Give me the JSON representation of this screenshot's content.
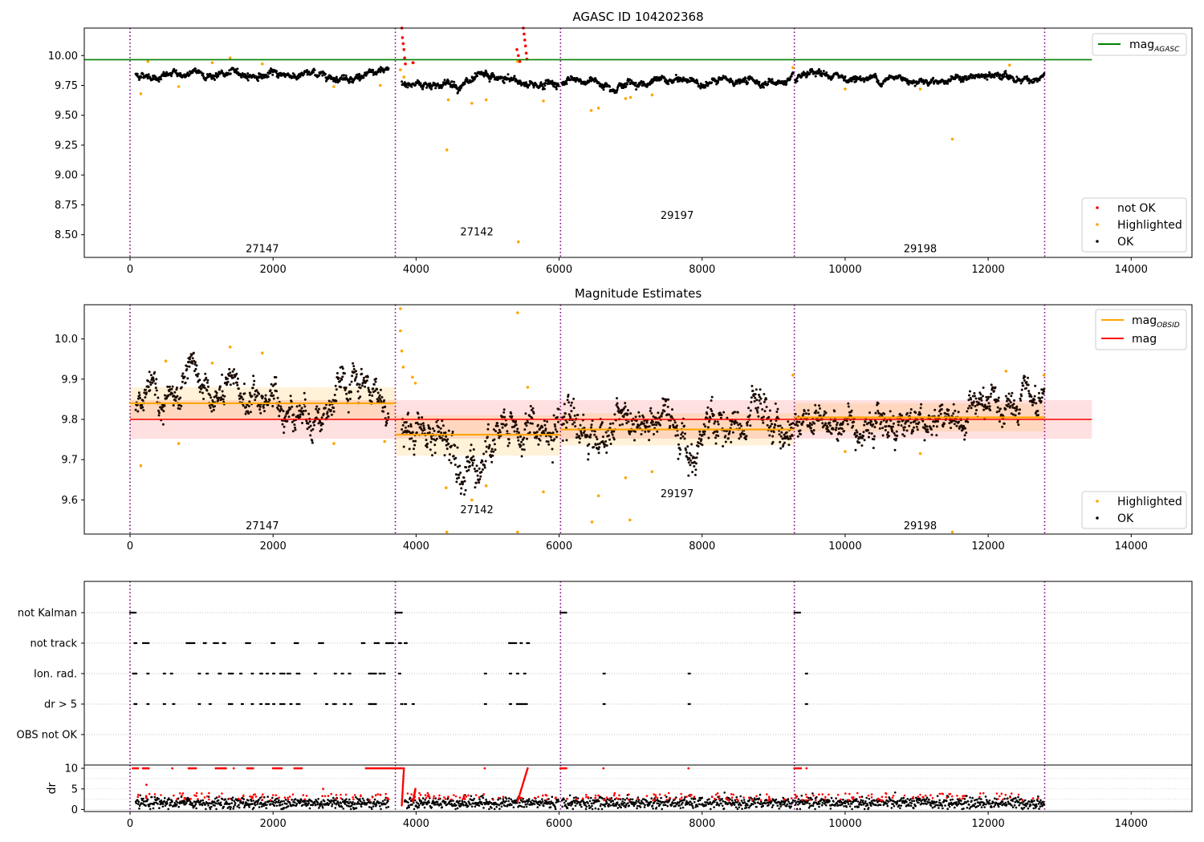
{
  "colors": {
    "ok": "#000000",
    "not_ok": "#ff0000",
    "highlighted": "#ffa500",
    "mag_agasc_line": "#008000",
    "mag_line": "#ff0000",
    "mag_obsid_line": "#ffa500",
    "obs_boundary": "#800080"
  },
  "chart_data": [
    {
      "type": "scatter",
      "title": "AGASC ID 104202368",
      "xlim": [
        -640,
        14850
      ],
      "ylim": [
        8.31,
        10.23
      ],
      "xticks": [
        0,
        2000,
        4000,
        6000,
        8000,
        10000,
        12000,
        14000
      ],
      "yticks": [
        8.5,
        8.75,
        9.0,
        9.25,
        9.5,
        9.75,
        10.0
      ],
      "xtick_labels": [
        "0",
        "2000",
        "4000",
        "6000",
        "8000",
        "10000",
        "12000",
        "14000"
      ],
      "ytick_labels": [
        "8.50",
        "8.75",
        "9.00",
        "9.25",
        "9.50",
        "9.75",
        "10.00"
      ],
      "grid": false,
      "hlines": [
        {
          "name": "mag_AGASC",
          "y": 9.965,
          "x": [
            -640,
            13450
          ]
        }
      ],
      "obs_boundaries": [
        0,
        3710,
        6020,
        9290,
        12790
      ],
      "obsid_labels": [
        {
          "text": "27147",
          "x": 1850,
          "y": 8.38
        },
        {
          "text": "27142",
          "x": 4850,
          "y": 8.52
        },
        {
          "text": "29197",
          "x": 7650,
          "y": 8.66
        },
        {
          "text": "29198",
          "x": 11050,
          "y": 8.38
        }
      ],
      "segments": [
        {
          "x": [
            80,
            3620
          ],
          "base": 9.84,
          "noise": 0.025
        },
        {
          "x": [
            3800,
            6000
          ],
          "base": 9.77,
          "noise": 0.03
        },
        {
          "x": [
            6040,
            9280
          ],
          "base": 9.78,
          "noise": 0.025
        },
        {
          "x": [
            9300,
            12790
          ],
          "base": 9.81,
          "noise": 0.025
        }
      ],
      "highlighted_points": [
        [
          150,
          9.68
        ],
        [
          250,
          9.95
        ],
        [
          680,
          9.74
        ],
        [
          1150,
          9.94
        ],
        [
          1400,
          9.98
        ],
        [
          1850,
          9.93
        ],
        [
          2850,
          9.74
        ],
        [
          3500,
          9.75
        ],
        [
          3780,
          9.88
        ],
        [
          3830,
          9.82
        ],
        [
          3950,
          9.94
        ],
        [
          4430,
          9.21
        ],
        [
          4450,
          9.63
        ],
        [
          4780,
          9.6
        ],
        [
          4980,
          9.63
        ],
        [
          5430,
          8.44
        ],
        [
          5420,
          9.95
        ],
        [
          5780,
          9.62
        ],
        [
          6450,
          9.54
        ],
        [
          6550,
          9.56
        ],
        [
          6930,
          9.64
        ],
        [
          7000,
          9.65
        ],
        [
          7300,
          9.67
        ],
        [
          9270,
          9.9
        ],
        [
          10000,
          9.72
        ],
        [
          11050,
          9.72
        ],
        [
          11500,
          9.3
        ],
        [
          12300,
          9.92
        ]
      ],
      "not_ok_points": [
        [
          3800,
          10.23
        ],
        [
          3810,
          10.15
        ],
        [
          3820,
          10.1
        ],
        [
          3830,
          10.05
        ],
        [
          3840,
          9.98
        ],
        [
          3850,
          9.93
        ],
        [
          3960,
          9.94
        ],
        [
          5410,
          10.05
        ],
        [
          5430,
          10.0
        ],
        [
          5450,
          9.95
        ],
        [
          5500,
          10.23
        ],
        [
          5510,
          10.18
        ],
        [
          5520,
          10.13
        ],
        [
          5530,
          10.08
        ],
        [
          5540,
          10.02
        ],
        [
          5550,
          9.97
        ]
      ],
      "legend_upper": {
        "position": "upper-right",
        "entries": [
          {
            "label": "mag",
            "sub": "AGASC",
            "series": "mag_agasc_line"
          }
        ]
      },
      "legend_lower": {
        "position": "lower-right",
        "entries": [
          {
            "label": "not OK",
            "series": "not_ok"
          },
          {
            "label": "Highlighted",
            "series": "highlighted"
          },
          {
            "label": "OK",
            "series": "ok"
          }
        ]
      }
    },
    {
      "type": "scatter",
      "title": "Magnitude Estimates",
      "xlim": [
        -640,
        14850
      ],
      "ylim": [
        9.515,
        10.085
      ],
      "xticks": [
        0,
        2000,
        4000,
        6000,
        8000,
        10000,
        12000,
        14000
      ],
      "yticks": [
        9.6,
        9.7,
        9.8,
        9.9,
        10.0
      ],
      "xtick_labels": [
        "0",
        "2000",
        "4000",
        "6000",
        "8000",
        "10000",
        "12000",
        "14000"
      ],
      "ytick_labels": [
        "9.6",
        "9.7",
        "9.8",
        "9.9",
        "10.0"
      ],
      "grid": false,
      "mag": {
        "y": 9.8,
        "band": [
          9.752,
          9.848
        ],
        "x": [
          0,
          13450
        ]
      },
      "mag_obsid": [
        {
          "x": [
            0,
            3710
          ],
          "y": 9.84,
          "band": [
            9.8,
            9.88
          ]
        },
        {
          "x": [
            3710,
            6020
          ],
          "y": 9.762,
          "band": [
            9.71,
            9.81
          ]
        },
        {
          "x": [
            6020,
            9290
          ],
          "y": 9.775,
          "band": [
            9.735,
            9.815
          ]
        },
        {
          "x": [
            9290,
            12790
          ],
          "y": 9.805,
          "band": [
            9.77,
            9.84
          ]
        }
      ],
      "obs_boundaries": [
        0,
        3710,
        6020,
        9290,
        12790
      ],
      "obsid_labels": [
        {
          "text": "27147",
          "x": 1850,
          "y": 9.535
        },
        {
          "text": "27142",
          "x": 4850,
          "y": 9.575
        },
        {
          "text": "29197",
          "x": 7650,
          "y": 9.615
        },
        {
          "text": "29198",
          "x": 11050,
          "y": 9.535
        }
      ],
      "segments": [
        {
          "x": [
            80,
            3620
          ],
          "base": 9.84,
          "noise": 0.035
        },
        {
          "x": [
            3800,
            6000
          ],
          "base": 9.76,
          "noise": 0.045
        },
        {
          "x": [
            6040,
            9280
          ],
          "base": 9.775,
          "noise": 0.04
        },
        {
          "x": [
            9300,
            12790
          ],
          "base": 9.805,
          "noise": 0.035
        }
      ],
      "highlighted_points": [
        [
          150,
          9.685
        ],
        [
          500,
          9.945
        ],
        [
          680,
          9.74
        ],
        [
          1150,
          9.94
        ],
        [
          1400,
          9.98
        ],
        [
          1850,
          9.965
        ],
        [
          2850,
          9.74
        ],
        [
          3560,
          9.745
        ],
        [
          3780,
          10.075
        ],
        [
          3780,
          10.02
        ],
        [
          3800,
          9.97
        ],
        [
          3820,
          9.93
        ],
        [
          3950,
          9.905
        ],
        [
          3990,
          9.89
        ],
        [
          4420,
          9.63
        ],
        [
          4430,
          9.52
        ],
        [
          4780,
          9.6
        ],
        [
          4980,
          9.635
        ],
        [
          5420,
          10.065
        ],
        [
          5420,
          9.52
        ],
        [
          5560,
          9.88
        ],
        [
          5780,
          9.62
        ],
        [
          6460,
          9.545
        ],
        [
          6550,
          9.61
        ],
        [
          6930,
          9.655
        ],
        [
          6990,
          9.55
        ],
        [
          7300,
          9.67
        ],
        [
          9270,
          9.91
        ],
        [
          10000,
          9.72
        ],
        [
          11050,
          9.715
        ],
        [
          11500,
          9.52
        ],
        [
          12250,
          9.92
        ],
        [
          12780,
          9.91
        ]
      ],
      "legend_upper": {
        "position": "upper-right",
        "entries": [
          {
            "label": "mag",
            "sub": "OBSID",
            "series": "mag_obsid_line"
          },
          {
            "label": "mag",
            "series": "mag_line"
          }
        ]
      },
      "legend_lower": {
        "position": "lower-right",
        "entries": [
          {
            "label": "Highlighted",
            "series": "highlighted"
          },
          {
            "label": "OK",
            "series": "ok"
          }
        ]
      }
    },
    {
      "type": "scatter",
      "title": "",
      "xlim": [
        -640,
        14850
      ],
      "xticks": [
        0,
        2000,
        4000,
        6000,
        8000,
        10000,
        12000,
        14000
      ],
      "xtick_labels": [
        "0",
        "2000",
        "4000",
        "6000",
        "8000",
        "10000",
        "12000",
        "14000"
      ],
      "flag_rows": [
        "not Kalman",
        "not track",
        "Ion. rad.",
        "dr > 5",
        "OBS not OK"
      ],
      "obs_boundaries": [
        0,
        3710,
        6020,
        9290,
        12790
      ],
      "flag_points": {
        "not Kalman": [
          [
            0,
            80
          ],
          [
            3710,
            3800
          ],
          [
            6020,
            6100
          ],
          [
            9290,
            9370
          ]
        ],
        "not track": [
          [
            60,
            90
          ],
          [
            180,
            260
          ],
          [
            790,
            900
          ],
          [
            1030,
            1060
          ],
          [
            1170,
            1230
          ],
          [
            1300,
            1330
          ],
          [
            1620,
            1680
          ],
          [
            1980,
            2020
          ],
          [
            2300,
            2350
          ],
          [
            2640,
            2700
          ],
          [
            3240,
            3280
          ],
          [
            3420,
            3480
          ],
          [
            3580,
            3680
          ],
          [
            3760,
            3790
          ],
          [
            3840,
            3870
          ],
          [
            5300,
            5400
          ],
          [
            5460,
            5480
          ],
          [
            5550,
            5580
          ]
        ],
        "Ion. rad.": [
          [
            40,
            90
          ],
          [
            240,
            260
          ],
          [
            470,
            490
          ],
          [
            570,
            590
          ],
          [
            960,
            980
          ],
          [
            1070,
            1090
          ],
          [
            1240,
            1270
          ],
          [
            1380,
            1440
          ],
          [
            1540,
            1560
          ],
          [
            1700,
            1720
          ],
          [
            1820,
            1850
          ],
          [
            1910,
            1930
          ],
          [
            2000,
            2020
          ],
          [
            2100,
            2160
          ],
          [
            2200,
            2240
          ],
          [
            2330,
            2370
          ],
          [
            2580,
            2600
          ],
          [
            2860,
            2880
          ],
          [
            2960,
            2980
          ],
          [
            3060,
            3080
          ],
          [
            3340,
            3440
          ],
          [
            3490,
            3510
          ],
          [
            3540,
            3560
          ],
          [
            3760,
            3780
          ],
          [
            4960,
            4980
          ],
          [
            5310,
            5330
          ],
          [
            5410,
            5430
          ],
          [
            5510,
            5530
          ],
          [
            6620,
            6640
          ],
          [
            7810,
            7830
          ],
          [
            9450,
            9470
          ]
        ],
        "dr > 5": [
          [
            60,
            90
          ],
          [
            240,
            260
          ],
          [
            470,
            490
          ],
          [
            600,
            620
          ],
          [
            960,
            980
          ],
          [
            1110,
            1130
          ],
          [
            1380,
            1430
          ],
          [
            1560,
            1580
          ],
          [
            1700,
            1720
          ],
          [
            1820,
            1840
          ],
          [
            1900,
            1940
          ],
          [
            2000,
            2020
          ],
          [
            2100,
            2160
          ],
          [
            2240,
            2260
          ],
          [
            2330,
            2370
          ],
          [
            2740,
            2760
          ],
          [
            2840,
            2880
          ],
          [
            2990,
            3010
          ],
          [
            3080,
            3100
          ],
          [
            3340,
            3440
          ],
          [
            3790,
            3810
          ],
          [
            3840,
            3860
          ],
          [
            3950,
            3970
          ],
          [
            4960,
            4980
          ],
          [
            5310,
            5330
          ],
          [
            5410,
            5550
          ],
          [
            6620,
            6640
          ],
          [
            7810,
            7830
          ],
          [
            9450,
            9470
          ]
        ],
        "OBS not OK": []
      },
      "dr_panel": {
        "ylabel": "dr",
        "ylim": [
          -0.5,
          10.8
        ],
        "yticks": [
          0,
          5,
          10
        ],
        "ytick_labels": [
          "0",
          "5",
          "10"
        ],
        "ok_segments": [
          [
            80,
            3620
          ],
          [
            3840,
            6000
          ],
          [
            6040,
            9280
          ],
          [
            9300,
            12790
          ]
        ],
        "not_ok_clusters": [
          [
            40,
            110,
            10
          ],
          [
            180,
            260,
            10
          ],
          [
            820,
            920,
            10
          ],
          [
            1200,
            1340,
            10
          ],
          [
            1640,
            1720,
            10
          ],
          [
            2000,
            2120,
            10
          ],
          [
            2300,
            2400,
            10
          ],
          [
            3300,
            3800,
            10
          ],
          [
            6020,
            6100,
            10
          ],
          [
            9290,
            9380,
            10
          ]
        ],
        "not_ok_spikes": [
          [
            3800,
            3830,
            10,
            1
          ],
          [
            5420,
            5560,
            10,
            2
          ],
          [
            3960,
            3990,
            5,
            2
          ]
        ],
        "not_ok_isolated": [
          [
            230,
            6
          ],
          [
            590,
            10
          ],
          [
            1450,
            10
          ],
          [
            2700,
            5
          ],
          [
            4960,
            10
          ],
          [
            6620,
            10
          ],
          [
            7810,
            10
          ],
          [
            9460,
            10
          ]
        ]
      }
    }
  ]
}
